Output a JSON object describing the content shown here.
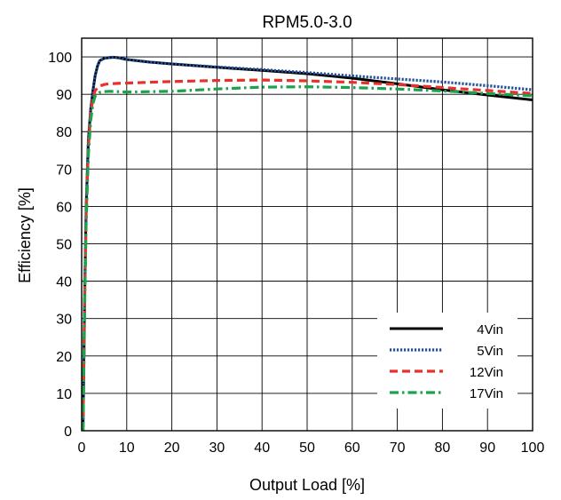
{
  "chart_data": {
    "type": "line",
    "title": "RPM5.0-3.0",
    "xlabel": "Output Load [%]",
    "ylabel": "Efficiency [%]",
    "xlim": [
      0,
      100
    ],
    "ylim": [
      0,
      105
    ],
    "xticks": [
      0,
      10,
      20,
      30,
      40,
      50,
      60,
      70,
      80,
      90,
      100
    ],
    "yticks": [
      0,
      10,
      20,
      30,
      40,
      50,
      60,
      70,
      80,
      90,
      100
    ],
    "grid": true,
    "legend_position": "bottom-right",
    "series": [
      {
        "name": "4Vin",
        "color": "#000000",
        "style": "solid",
        "x": [
          0.3,
          0.7,
          1.0,
          1.5,
          2.0,
          2.5,
          3.0,
          3.5,
          4.0,
          5.0,
          6.0,
          7.0,
          8.0,
          10,
          15,
          20,
          30,
          40,
          50,
          60,
          70,
          80,
          90,
          100
        ],
        "y": [
          0,
          40,
          60,
          78,
          86,
          91,
          95,
          97.5,
          99,
          99.6,
          99.8,
          99.9,
          99.8,
          99.3,
          98.6,
          98.1,
          97.2,
          96.4,
          95.5,
          94.3,
          92.8,
          91.2,
          89.8,
          88.5
        ]
      },
      {
        "name": "5Vin",
        "color": "#1f4e9a",
        "style": "dotted",
        "x": [
          0.3,
          0.7,
          1.0,
          1.5,
          2.0,
          2.5,
          3.0,
          3.5,
          4.0,
          5.0,
          6.0,
          7.0,
          8.0,
          10,
          15,
          20,
          30,
          40,
          50,
          60,
          70,
          80,
          90,
          100
        ],
        "y": [
          0,
          40,
          60,
          78,
          86,
          91,
          95,
          97.5,
          99,
          99.6,
          99.8,
          99.9,
          99.8,
          99.3,
          98.6,
          98.1,
          97.3,
          96.6,
          95.8,
          94.9,
          94.1,
          93.3,
          92.3,
          91.2
        ]
      },
      {
        "name": "12Vin",
        "color": "#e8312a",
        "style": "dashed",
        "x": [
          0.3,
          0.7,
          1.0,
          1.5,
          2.0,
          2.5,
          3.0,
          4.0,
          5.0,
          6.0,
          8.0,
          10,
          20,
          30,
          40,
          50,
          60,
          70,
          80,
          90,
          100
        ],
        "y": [
          0,
          38,
          58,
          76,
          85,
          89,
          91,
          92.2,
          92.6,
          92.8,
          92.9,
          93.0,
          93.4,
          93.7,
          93.8,
          93.6,
          93.2,
          92.6,
          91.8,
          91.0,
          90.2
        ]
      },
      {
        "name": "17Vin",
        "color": "#1aa34a",
        "style": "dashdot",
        "x": [
          0.3,
          0.7,
          1.0,
          1.5,
          2.0,
          2.5,
          3.0,
          4.0,
          5.0,
          6.0,
          8.0,
          10,
          20,
          30,
          40,
          50,
          60,
          70,
          80,
          90,
          100
        ],
        "y": [
          0,
          36,
          56,
          74,
          83,
          87.5,
          89.5,
          90.5,
          90.7,
          90.8,
          90.7,
          90.6,
          90.8,
          91.4,
          91.9,
          92.0,
          91.8,
          91.4,
          90.9,
          90.2,
          89.6
        ]
      }
    ]
  }
}
